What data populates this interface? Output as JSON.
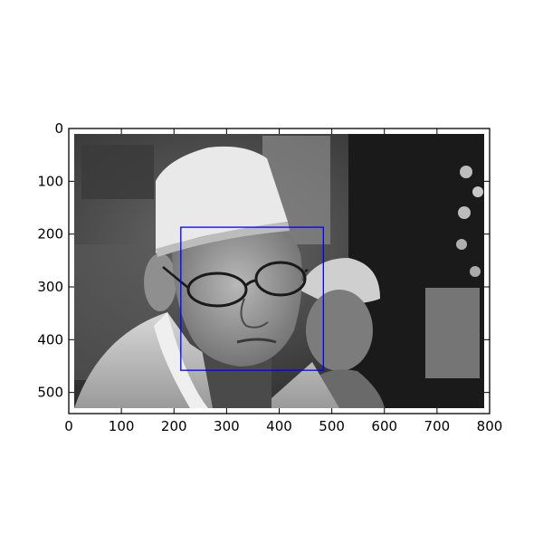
{
  "image": {
    "description_icon": "grayscale-photo-icon",
    "width": 800,
    "height": 540
  },
  "axes": {
    "xlim": [
      0,
      800
    ],
    "ylim": [
      540,
      0
    ],
    "x_ticks": [
      "0",
      "100",
      "200",
      "300",
      "400",
      "500",
      "600",
      "700",
      "800"
    ],
    "y_ticks": [
      "0",
      "100",
      "200",
      "300",
      "400",
      "500"
    ],
    "grid": false
  },
  "box": {
    "x0": 213,
    "y0": 187,
    "x1": 484,
    "y1": 458,
    "color": "#0000ff"
  },
  "colors": {
    "frame": "#000000",
    "background": "#ffffff"
  }
}
